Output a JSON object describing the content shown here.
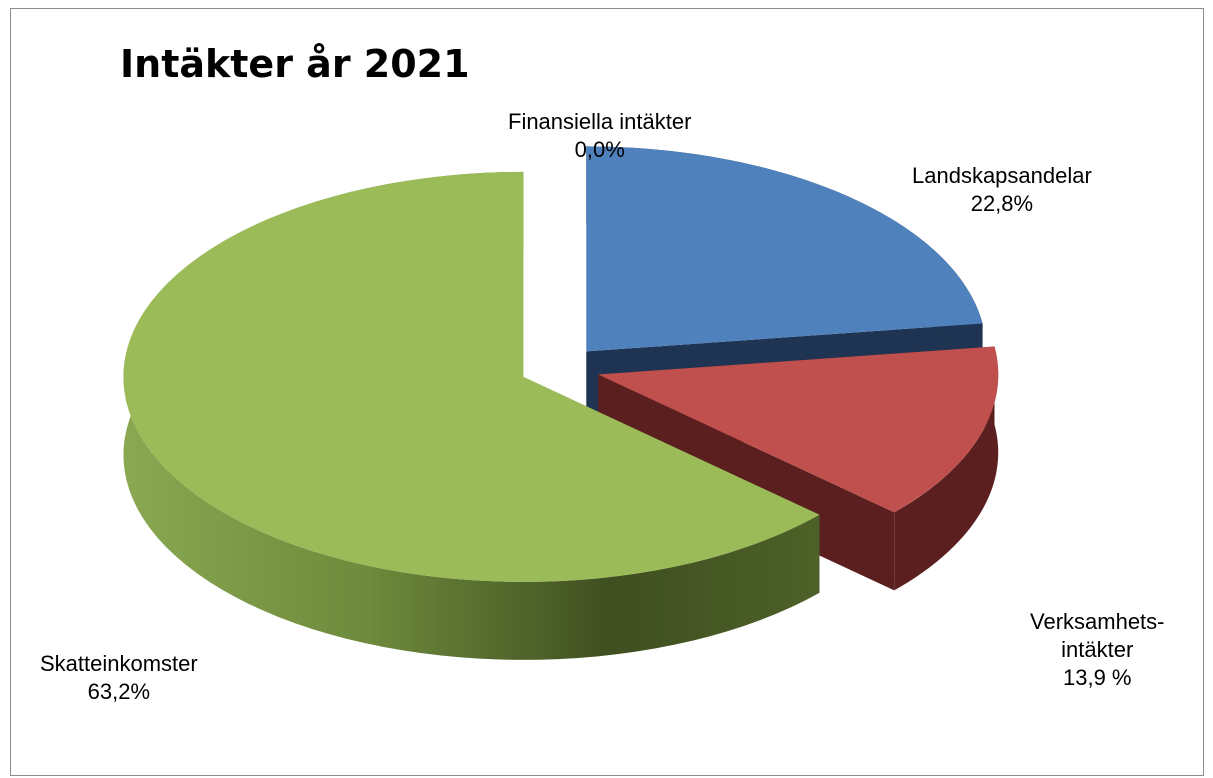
{
  "chart_data": {
    "type": "pie",
    "title": "Intäkter år 2021",
    "categories": [
      "Landskapsandelar",
      "Verksamhetsintäkter",
      "Skatteinkomster",
      "Finansiella intäkter"
    ],
    "values": [
      22.8,
      13.9,
      63.2,
      0.0
    ],
    "unit": "%",
    "labels": [
      {
        "lines": [
          "Landskapsandelar",
          "22,8%"
        ]
      },
      {
        "lines": [
          "Verksamhets-",
          "intäkter",
          "13,9 %"
        ]
      },
      {
        "lines": [
          "Skatteinkomster",
          "63,2%"
        ]
      },
      {
        "lines": [
          "Finansiella intäkter",
          "0,0%"
        ]
      }
    ],
    "colors": [
      "#4f81bd",
      "#c0504d",
      "#9bbb59",
      "#8064a2"
    ],
    "exploded": true,
    "style": "3d"
  }
}
